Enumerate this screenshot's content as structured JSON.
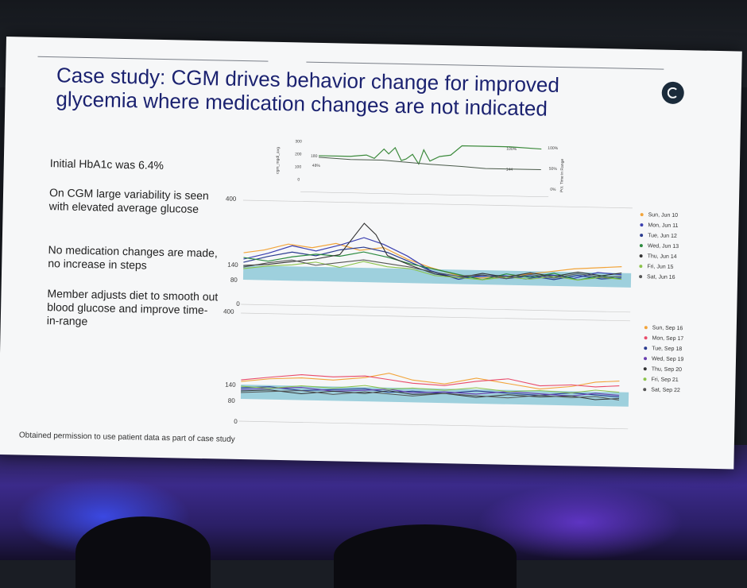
{
  "slide": {
    "title": "Case study: CGM drives behavior change for improved glycemia where medication changes are not indicated",
    "bullets": [
      "Initial HbA1c was 6.4%",
      "On CGM large variability is seen with elevated average glucose",
      "No medication changes are made, no increase in steps",
      "Member adjusts diet to smooth out blood glucose and improve time-in-range"
    ],
    "footnote": "Obtained permission to use patient data as part of case study"
  },
  "mini_chart": {
    "left_axis_title": "cgm_mgdl_avg",
    "right_axis_title": "Pct. Time in Range",
    "left_ticks": [
      "300",
      "200",
      "100",
      "0"
    ],
    "right_ticks": [
      "100%",
      "50%",
      "0%"
    ],
    "annotations": [
      "180",
      "48%",
      "100%",
      "144"
    ]
  },
  "chart_june": {
    "y_ticks": [
      "400",
      "140",
      "80",
      "0"
    ],
    "legend": [
      {
        "label": "Sun, Jun 10",
        "color": "#f2a43a"
      },
      {
        "label": "Mon, Jun 11",
        "color": "#3b3fb0"
      },
      {
        "label": "Tue, Jun 12",
        "color": "#2a3b8f"
      },
      {
        "label": "Wed, Jun 13",
        "color": "#2b8a3e"
      },
      {
        "label": "Thu, Jun 14",
        "color": "#333333"
      },
      {
        "label": "Fri, Jun 15",
        "color": "#8bc34a"
      },
      {
        "label": "Sat, Jun 16",
        "color": "#555555"
      }
    ]
  },
  "chart_sept": {
    "y_ticks": [
      "400",
      "140",
      "80",
      "0"
    ],
    "legend": [
      {
        "label": "Sun, Sep 16",
        "color": "#f2a43a"
      },
      {
        "label": "Mon, Sep 17",
        "color": "#e94b6a"
      },
      {
        "label": "Tue, Sep 18",
        "color": "#2a3b8f"
      },
      {
        "label": "Wed, Sep 19",
        "color": "#6a3fb0"
      },
      {
        "label": "Thu, Sep 20",
        "color": "#333333"
      },
      {
        "label": "Fri, Sep 21",
        "color": "#8bc34a"
      },
      {
        "label": "Sat, Sep 22",
        "color": "#555555"
      }
    ]
  }
}
